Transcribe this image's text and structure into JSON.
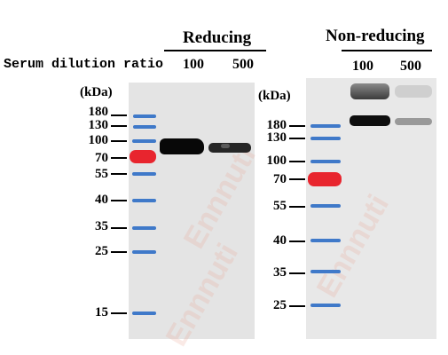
{
  "headers": {
    "reducing": "Reducing",
    "non_reducing": "Non-reducing"
  },
  "serum_label": "Serum dilution ratio",
  "lanes": {
    "reducing": [
      "100",
      "500"
    ],
    "non_reducing": [
      "100",
      "500"
    ]
  },
  "unit": "(kDa)",
  "markers_left": [
    "180",
    "130",
    "100",
    "70",
    "55",
    "40",
    "35",
    "25",
    "15"
  ],
  "markers_right": [
    "180",
    "130",
    "100",
    "70",
    "55",
    "40",
    "35",
    "25"
  ],
  "colors": {
    "ladder_blue": "#3f79c9",
    "ladder_red": "#e8252e",
    "membrane": "#e4e4e4"
  }
}
